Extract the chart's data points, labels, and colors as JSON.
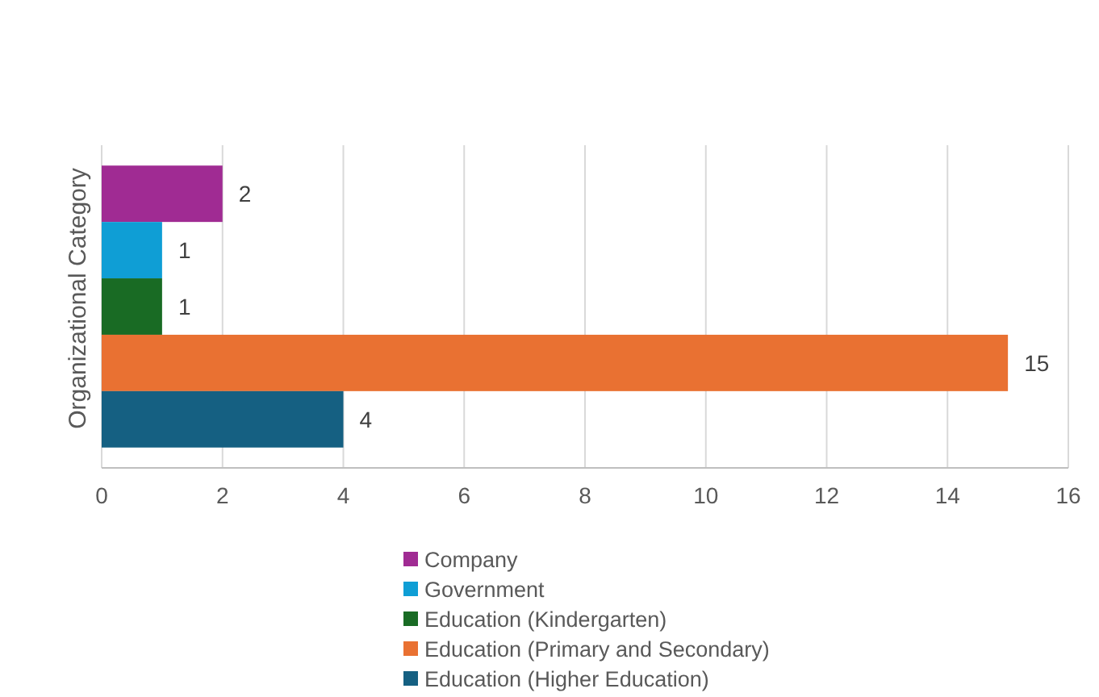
{
  "chart_data": {
    "type": "bar",
    "orientation": "horizontal",
    "ylabel": "Organizational Category",
    "categories": [
      null
    ],
    "series": [
      {
        "name": "Company",
        "color": "#a02b93",
        "values": [
          2
        ]
      },
      {
        "name": "Government",
        "color": "#0f9ed5",
        "values": [
          1
        ]
      },
      {
        "name": "Education (Kindergarten)",
        "color": "#196b24",
        "values": [
          1
        ]
      },
      {
        "name": "Education (Primary and Secondary)",
        "color": "#e97132",
        "values": [
          15
        ]
      },
      {
        "name": "Education (Higher Education)",
        "color": "#156082",
        "values": [
          4
        ]
      }
    ],
    "xlim": [
      0,
      16
    ],
    "xticks": [
      0,
      2,
      4,
      6,
      8,
      10,
      12,
      14,
      16
    ],
    "grid": "x",
    "legend": "bottom",
    "data_labels": true
  }
}
